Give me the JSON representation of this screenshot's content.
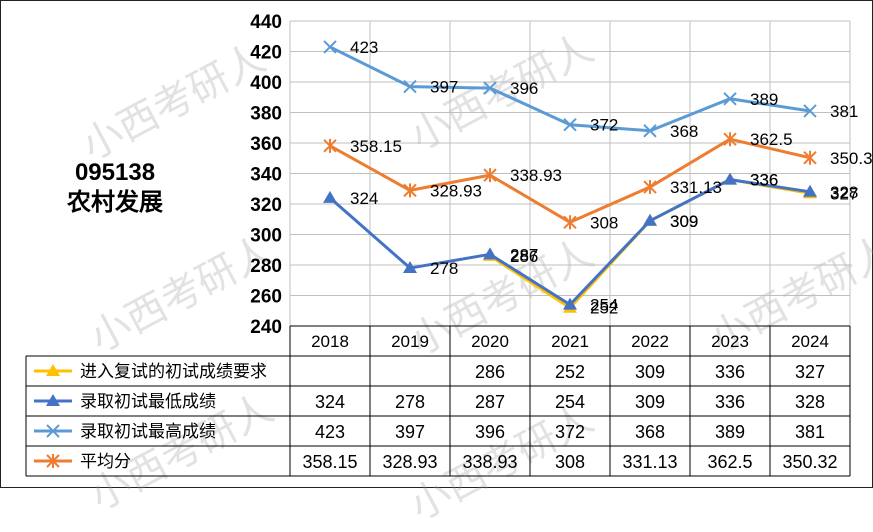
{
  "side_title": {
    "code": "095138",
    "name": "农村发展"
  },
  "watermark_text": "小西考研人",
  "colors": {
    "requirement": "#FFC000",
    "min": "#4472C4",
    "max": "#5B9BD5",
    "avg": "#ED7D31",
    "grid": "#BFBFBF",
    "border": "#000000"
  },
  "chart_data": {
    "type": "line",
    "categories": [
      "2018",
      "2019",
      "2020",
      "2021",
      "2022",
      "2023",
      "2024"
    ],
    "ylim": [
      240,
      440
    ],
    "yticks": [
      "240",
      "260",
      "280",
      "300",
      "320",
      "340",
      "360",
      "380",
      "400",
      "420",
      "440"
    ],
    "grid": true,
    "legend_placement": "data-table-left",
    "series": [
      {
        "name": "进入复试的初试成绩要求",
        "marker": "triangle",
        "color": "#FFC000",
        "values": [
          null,
          null,
          286,
          252,
          309,
          336,
          327
        ],
        "labels": [
          "",
          "",
          "286",
          "252",
          "309",
          "336",
          "327"
        ]
      },
      {
        "name": "录取初试最低成绩",
        "marker": "triangle",
        "color": "#4472C4",
        "values": [
          324,
          278,
          287,
          254,
          309,
          336,
          328
        ],
        "labels": [
          "324",
          "278",
          "287",
          "254",
          "309",
          "336",
          "328"
        ]
      },
      {
        "name": "录取初试最高成绩",
        "marker": "x",
        "color": "#5B9BD5",
        "values": [
          423,
          397,
          396,
          372,
          368,
          389,
          381
        ],
        "labels": [
          "423",
          "397",
          "396",
          "372",
          "368",
          "389",
          "381"
        ]
      },
      {
        "name": "平均分",
        "marker": "star",
        "color": "#ED7D31",
        "values": [
          358.15,
          328.93,
          338.93,
          308,
          331.13,
          362.5,
          350.32
        ],
        "labels": [
          "358.15",
          "328.93",
          "338.93",
          "308",
          "331.13",
          "362.5",
          "350.32"
        ]
      }
    ]
  }
}
